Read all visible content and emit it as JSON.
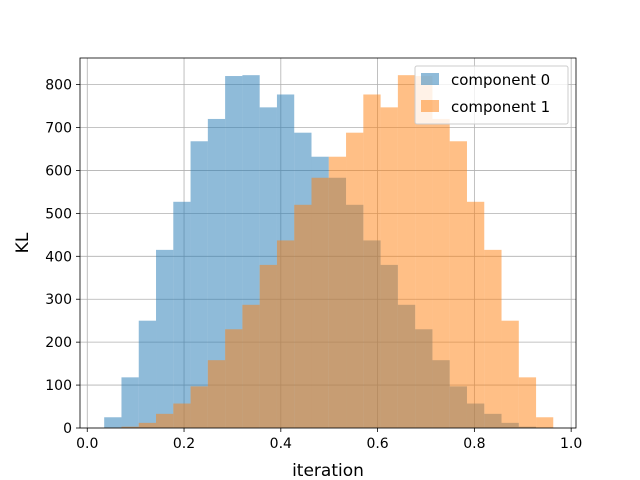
{
  "chart_data": {
    "type": "histogram",
    "xlabel": "iteration",
    "ylabel": "KL",
    "xlim": [
      -0.015,
      1.01
    ],
    "ylim": [
      0,
      862
    ],
    "xticks": [
      0.0,
      0.2,
      0.4,
      0.6,
      0.8,
      1.0
    ],
    "xtick_labels": [
      "0.0",
      "0.2",
      "0.4",
      "0.6",
      "0.8",
      "1.0"
    ],
    "yticks": [
      0,
      100,
      200,
      300,
      400,
      500,
      600,
      700,
      800
    ],
    "ytick_labels": [
      "0",
      "100",
      "200",
      "300",
      "400",
      "500",
      "600",
      "700",
      "800"
    ],
    "grid": true,
    "legend_position": "top-right",
    "series": [
      {
        "name": "component 0",
        "color": "#1f77b4",
        "alpha": 0.5,
        "bin_edges": [
          0.035,
          0.0707,
          0.1064,
          0.1421,
          0.1778,
          0.2135,
          0.2492,
          0.2849,
          0.3206,
          0.3563,
          0.392,
          0.4277,
          0.4634,
          0.4991,
          0.5348,
          0.5705,
          0.6062,
          0.6419,
          0.6776,
          0.7133,
          0.749,
          0.7847,
          0.8204,
          0.8561,
          0.8918,
          0.9275,
          0.963
        ],
        "counts": [
          25,
          118,
          250,
          415,
          527,
          668,
          720,
          820,
          822,
          747,
          777,
          688,
          632,
          583,
          520,
          437,
          380,
          287,
          230,
          158,
          97,
          57,
          33,
          12,
          3,
          1
        ]
      },
      {
        "name": "component 1",
        "color": "#ff7f0e",
        "alpha": 0.5,
        "bin_edges": [
          0.035,
          0.0707,
          0.1064,
          0.1421,
          0.1778,
          0.2135,
          0.2492,
          0.2849,
          0.3206,
          0.3563,
          0.392,
          0.4277,
          0.4634,
          0.4991,
          0.5348,
          0.5705,
          0.6062,
          0.6419,
          0.6776,
          0.7133,
          0.749,
          0.7847,
          0.8204,
          0.8561,
          0.8918,
          0.9275,
          0.963
        ],
        "counts": [
          1,
          3,
          12,
          33,
          57,
          97,
          158,
          230,
          287,
          380,
          437,
          520,
          583,
          632,
          688,
          777,
          747,
          822,
          820,
          720,
          668,
          527,
          415,
          250,
          118,
          25
        ]
      }
    ]
  }
}
